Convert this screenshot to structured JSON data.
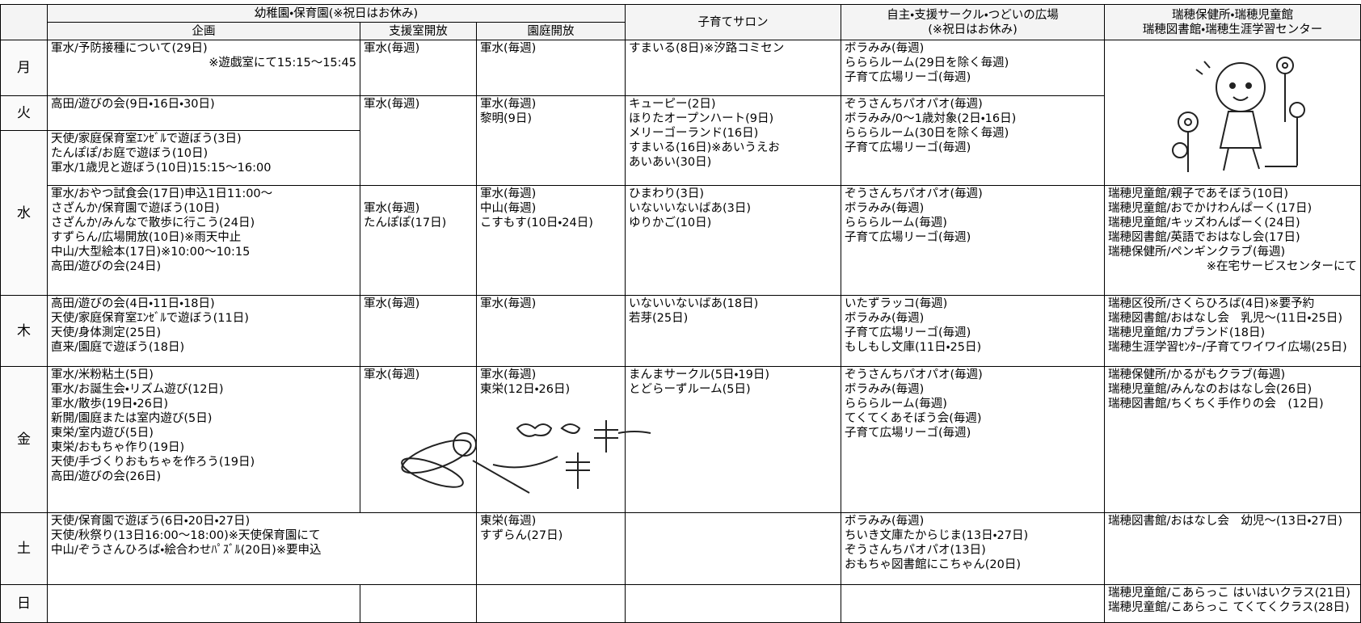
{
  "header": {
    "group": "幼稚園・保育園(※祝日はお休み)",
    "kikaku": "企画",
    "shien": "支援室開放",
    "entei": "園庭開放",
    "salon": "子育てサロン",
    "jishu": [
      "自主・支援サークル・つどいの広場",
      "(※祝日はお休み)"
    ],
    "mizuho": [
      "瑞穂保健所・瑞穂児童館",
      "瑞穂図書館・瑞穂生涯学習センター"
    ]
  },
  "rows": [
    {
      "day": "月",
      "kikaku": [
        "軍水/予防接種について(29日)",
        "※遊戯室にて15:15～15:45"
      ],
      "shien": [
        "軍水(毎週)"
      ],
      "entei": [
        "軍水(毎週)"
      ],
      "salon": [
        "すまいる(8日)※汐路コミセン"
      ],
      "jishu": [
        "ボラみみ(毎週)",
        "らららルーム(29日を除く毎週)",
        "子育て広場リーゴ(毎週)"
      ]
    },
    {
      "day": "火",
      "kikaku": [
        "高田/遊びの会(9日・16日・30日)"
      ],
      "shien": [
        "軍水(毎週)"
      ],
      "entei": [
        "軍水(毎週)",
        "黎明(9日)"
      ],
      "salon": [
        "キューピー(2日)",
        "ほりたオープンハート(9日)",
        "メリーゴーランド(16日)",
        "すまいる(16日)※あいうえお",
        "あいあい(30日)"
      ],
      "jishu": [
        "ぞうさんちパオパオ(毎週)",
        "ボラみみ/0～1歳対象(2日・16日)",
        "らららルーム(30日を除く毎週)",
        "子育て広場リーゴ(毎週)"
      ]
    },
    {
      "day": "水",
      "kikaku": [
        "天使/家庭保育室ｴﾝｾﾞﾙで遊ぼう(3日)",
        "たんぽぽ/お庭で遊ぼう(10日)",
        "軍水/1歳児と遊ぼう(10日)15:15～16:00"
      ],
      "kikaku2": [
        "軍水/おやつ試食会(17日)申込1日11:00～",
        "さざんか/保育園で遊ぼう(10日)",
        "さざんか/みんなで散歩に行こう(24日)",
        "すずらん/広場開放(10日)※雨天中止",
        "中山/大型絵本(17日)※10:00～10:15",
        "高田/遊びの会(24日)"
      ],
      "shien": [
        "軍水(毎週)",
        "たんぽぽ(17日)"
      ],
      "entei": [
        "軍水(毎週)",
        "中山(毎週)",
        "こすもす(10日・24日)"
      ],
      "salon": [
        "ひまわり(3日)",
        "いないいないばあ(3日)",
        "ゆりかご(10日)"
      ],
      "jishu": [
        "ぞうさんちパオパオ(毎週)",
        "ボラみみ(毎週)",
        "らららルーム(毎週)",
        "子育て広場リーゴ(毎週)"
      ],
      "mizuho": [
        "瑞穂児童館/親子であそぼう(10日)",
        "瑞穂児童館/おでかけわんぱーく(17日)",
        "瑞穂児童館/キッズわんぱーく(24日)",
        "瑞穂図書館/英語でおはなし会(17日)",
        "瑞穂保健所/ペンギンクラブ(毎週)",
        "※在宅サービスセンターにて"
      ]
    },
    {
      "day": "木",
      "kikaku": [
        "高田/遊びの会(4日・11日・18日)",
        "天使/家庭保育室ｴﾝｾﾞﾙで遊ぼう(11日)",
        "天使/身体測定(25日)",
        "直来/園庭で遊ぼう(18日)"
      ],
      "shien": [
        "軍水(毎週)"
      ],
      "entei": [
        "軍水(毎週)"
      ],
      "salon": [
        "いないいないばあ(18日)",
        "若芽(25日)"
      ],
      "jishu": [
        "いたずラッコ(毎週)",
        "ボラみみ(毎週)",
        "子育て広場リーゴ(毎週)",
        "もしもし文庫(11日・25日)"
      ],
      "mizuho": [
        "瑞穂区役所/さくらひろば(4日)※要予約",
        "瑞穂図書館/おはなし会　乳児～(11日・25日)",
        "瑞穂児童館/カプランド(18日)",
        "瑞穂生涯学習ｾﾝﾀｰ/子育てワイワイ広場(25日)"
      ]
    },
    {
      "day": "金",
      "kikaku": [
        "軍水/米粉粘土(5日)",
        "軍水/お誕生会・リズム遊び(12日)",
        "軍水/散歩(19日・26日)",
        "新開/園庭または室内遊び(5日)",
        "東栄/室内遊び(5日)",
        "東栄/おもちゃ作り(19日)",
        "天使/手づくりおもちゃを作ろう(19日)",
        "高田/遊びの会(26日)"
      ],
      "shien": [
        "軍水(毎週)"
      ],
      "entei": [
        "軍水(毎週)",
        "東栄(12日・26日)"
      ],
      "salon": [
        "まんまサークル(5日・19日)",
        "とどらーずルーム(5日)"
      ],
      "jishu": [
        "ぞうさんちパオパオ(毎週)",
        "ボラみみ(毎週)",
        "らららルーム(毎週)",
        "てくてくあそぼう会(毎週)",
        "子育て広場リーゴ(毎週)"
      ],
      "mizuho": [
        "瑞穂保健所/かるがもクラブ(毎週)",
        "瑞穂児童館/みんなのおはなし会(26日)",
        "瑞穂図書館/ちくちく手作りの会　(12日)"
      ]
    },
    {
      "day": "土",
      "kikaku": [
        "天使/保育園で遊ぼう(6日・20日・27日)",
        "天使/秋祭り(13日16:00～18:00)※天使保育園にて",
        "中山/ぞうさんひろば・絵合わせﾊﾟｽﾞﾙ(20日)※要申込"
      ],
      "entei": [
        "東栄(毎週)",
        "すずらん(27日)"
      ],
      "jishu": [
        "ボラみみ(毎週)",
        "ちいき文庫たからじま(13日・27日)",
        "ぞうさんちパオパオ(13日)",
        "おもちゃ図書館にこちゃん(20日)"
      ],
      "mizuho": [
        "瑞穂図書館/おはなし会　幼児～(13日・27日)"
      ]
    },
    {
      "day": "日",
      "mizuho": [
        "瑞穂児童館/こあらっこ はいはいクラス(21日)",
        "瑞穂児童館/こあらっこ てくてくクラス(28日)"
      ]
    }
  ]
}
